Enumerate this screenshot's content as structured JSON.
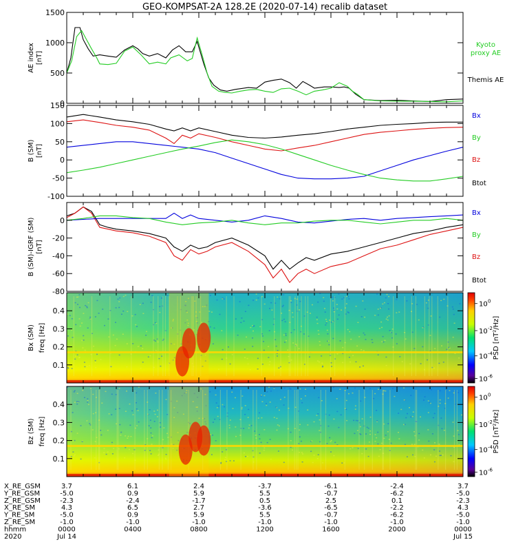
{
  "title": "GEO-KOMPSAT-2A 128.2E (2020-07-14) recalib dataset",
  "colors": {
    "black": "#000000",
    "blue": "#0000dd",
    "green": "#22cc22",
    "red": "#dd1111"
  },
  "chart_data": [
    {
      "id": "ae",
      "type": "line",
      "ylabel": "AE index",
      "yunit": "[nT]",
      "ylim": [
        0,
        1500
      ],
      "yticks": [
        0,
        500,
        1000,
        1500
      ],
      "xlim": [
        0,
        24
      ],
      "legend": [
        {
          "label": "Kyoto proxy AE",
          "color": "green"
        },
        {
          "label": "Themis AE",
          "color": "black"
        }
      ],
      "series": [
        {
          "name": "Themis AE",
          "color": "black",
          "x": [
            0,
            0.25,
            0.5,
            0.8,
            1,
            1.3,
            1.6,
            2,
            2.5,
            3,
            3.5,
            4,
            4.3,
            4.6,
            5,
            5.5,
            6,
            6.4,
            6.8,
            7.2,
            7.6,
            7.9,
            8.3,
            8.6,
            8.9,
            9.3,
            9.7,
            10.2,
            11,
            11.5,
            12,
            12.5,
            13,
            13.5,
            13.9,
            14.3,
            14.7,
            15,
            15.6,
            16,
            16.5,
            16.8,
            17.1,
            17.5,
            18,
            19,
            20,
            21,
            22,
            23,
            24
          ],
          "y": [
            500,
            750,
            1250,
            1250,
            1050,
            900,
            780,
            800,
            780,
            760,
            880,
            950,
            900,
            820,
            780,
            820,
            750,
            880,
            950,
            850,
            850,
            1020,
            650,
            420,
            300,
            220,
            200,
            230,
            260,
            250,
            350,
            380,
            400,
            340,
            250,
            360,
            300,
            250,
            270,
            270,
            260,
            270,
            250,
            150,
            60,
            45,
            50,
            40,
            30,
            60,
            70
          ]
        },
        {
          "name": "Kyoto proxy AE",
          "color": "green",
          "x": [
            0,
            0.3,
            0.6,
            0.9,
            1.2,
            1.5,
            1.8,
            2,
            2.5,
            3,
            3.5,
            4,
            4.5,
            5,
            5.5,
            6,
            6.3,
            6.8,
            7.3,
            7.6,
            7.9,
            8.2,
            8.5,
            8.8,
            9.2,
            9.6,
            10,
            10.5,
            11,
            11.5,
            12,
            12.5,
            13,
            13.5,
            14,
            14.5,
            15,
            15.5,
            16,
            16.5,
            17,
            17.3,
            17.6,
            18,
            19,
            20,
            21,
            22,
            23,
            24
          ],
          "y": [
            500,
            700,
            1100,
            1200,
            1050,
            900,
            760,
            650,
            640,
            660,
            860,
            930,
            800,
            650,
            680,
            650,
            750,
            800,
            700,
            740,
            1080,
            800,
            500,
            280,
            200,
            180,
            170,
            200,
            220,
            230,
            200,
            180,
            240,
            250,
            200,
            140,
            200,
            220,
            250,
            340,
            280,
            200,
            150,
            60,
            40,
            35,
            35,
            30,
            25,
            40
          ]
        }
      ]
    },
    {
      "id": "bsm",
      "type": "line",
      "ylabel": "B (SM)",
      "yunit": "[nT]",
      "ylim": [
        -100,
        150
      ],
      "yticks": [
        -100,
        -50,
        0,
        50,
        100,
        150
      ],
      "xlim": [
        0,
        24
      ],
      "legend": [
        {
          "label": "Bx",
          "color": "blue"
        },
        {
          "label": "By",
          "color": "green"
        },
        {
          "label": "Bz",
          "color": "red"
        },
        {
          "label": "Btot",
          "color": "black"
        }
      ],
      "series": [
        {
          "name": "Btot",
          "color": "black",
          "x": [
            0,
            1,
            2,
            3,
            4,
            5,
            6,
            6.5,
            7,
            7.5,
            8,
            9,
            10,
            11,
            12,
            13,
            14,
            15,
            16,
            17,
            18,
            19,
            20,
            21,
            22,
            23,
            24
          ],
          "y": [
            118,
            125,
            118,
            110,
            105,
            98,
            85,
            80,
            88,
            80,
            88,
            78,
            68,
            62,
            60,
            63,
            68,
            72,
            78,
            85,
            90,
            95,
            98,
            100,
            103,
            104,
            104
          ]
        },
        {
          "name": "Bz",
          "color": "red",
          "x": [
            0,
            1,
            2,
            3,
            4,
            5,
            6,
            6.5,
            7,
            7.5,
            8,
            9,
            10,
            11,
            12,
            13,
            14,
            15,
            16,
            17,
            18,
            19,
            20,
            21,
            22,
            23,
            24
          ],
          "y": [
            105,
            110,
            103,
            95,
            90,
            82,
            60,
            45,
            68,
            60,
            72,
            62,
            50,
            40,
            30,
            25,
            33,
            40,
            50,
            60,
            70,
            76,
            80,
            84,
            87,
            89,
            90
          ]
        },
        {
          "name": "Bx",
          "color": "blue",
          "x": [
            0,
            1,
            2,
            3,
            4,
            5,
            6,
            7,
            8,
            9,
            10,
            11,
            12,
            13,
            14,
            15,
            16,
            17,
            18,
            19,
            20,
            21,
            22,
            23,
            24
          ],
          "y": [
            35,
            40,
            45,
            50,
            50,
            45,
            40,
            35,
            30,
            20,
            5,
            -10,
            -25,
            -40,
            -50,
            -52,
            -52,
            -50,
            -45,
            -30,
            -15,
            0,
            12,
            24,
            35
          ]
        },
        {
          "name": "By",
          "color": "green",
          "x": [
            0,
            1,
            2,
            3,
            4,
            5,
            6,
            7,
            8,
            9,
            10,
            11,
            12,
            13,
            14,
            15,
            16,
            17,
            18,
            19,
            20,
            21,
            22,
            23,
            24
          ],
          "y": [
            -35,
            -28,
            -20,
            -10,
            0,
            10,
            20,
            30,
            38,
            48,
            55,
            50,
            42,
            30,
            15,
            0,
            -15,
            -28,
            -40,
            -50,
            -55,
            -58,
            -58,
            -52,
            -45
          ]
        }
      ]
    },
    {
      "id": "dbsm",
      "type": "line",
      "ylabel": "B (SM)-IGRF (SM)",
      "yunit": "[nT]",
      "ylim": [
        -80,
        20
      ],
      "yticks": [
        -80,
        -60,
        -40,
        -20,
        0
      ],
      "xlim": [
        0,
        24
      ],
      "legend": [
        {
          "label": "Bx",
          "color": "blue"
        },
        {
          "label": "By",
          "color": "green"
        },
        {
          "label": "Bz",
          "color": "red"
        },
        {
          "label": "Btot",
          "color": "black"
        }
      ],
      "series": [
        {
          "name": "Btot",
          "color": "black",
          "x": [
            0,
            0.5,
            1,
            1.5,
            2,
            2.5,
            3,
            4,
            5,
            6,
            6.5,
            7,
            7.5,
            8,
            8.5,
            9,
            10,
            11,
            12,
            12.5,
            13,
            13.5,
            14,
            14.5,
            15,
            16,
            17,
            18,
            19,
            20,
            21,
            22,
            23,
            24
          ],
          "y": [
            5,
            8,
            15,
            10,
            -5,
            -8,
            -10,
            -12,
            -15,
            -20,
            -30,
            -35,
            -28,
            -32,
            -30,
            -25,
            -20,
            -28,
            -40,
            -55,
            -45,
            -55,
            -48,
            -42,
            -45,
            -38,
            -35,
            -30,
            -25,
            -20,
            -15,
            -12,
            -8,
            -5
          ]
        },
        {
          "name": "Bz",
          "color": "red",
          "x": [
            0,
            0.5,
            1,
            1.5,
            2,
            2.5,
            3,
            4,
            5,
            6,
            6.5,
            7,
            7.5,
            8,
            8.5,
            9,
            10,
            11,
            12,
            12.5,
            13,
            13.5,
            14,
            14.5,
            15,
            16,
            17,
            18,
            19,
            20,
            21,
            22,
            23,
            24
          ],
          "y": [
            3,
            8,
            15,
            8,
            -8,
            -10,
            -12,
            -14,
            -18,
            -25,
            -40,
            -45,
            -33,
            -38,
            -35,
            -30,
            -25,
            -35,
            -50,
            -65,
            -55,
            -70,
            -60,
            -55,
            -60,
            -52,
            -48,
            -40,
            -32,
            -28,
            -22,
            -16,
            -12,
            -8
          ]
        },
        {
          "name": "Bx",
          "color": "blue",
          "x": [
            0,
            2,
            4,
            6,
            6.5,
            7,
            7.5,
            8,
            9,
            10,
            11,
            12,
            13,
            14,
            15,
            16,
            17,
            18,
            19,
            20,
            21,
            22,
            23,
            24
          ],
          "y": [
            0,
            2,
            2,
            2,
            8,
            2,
            6,
            2,
            0,
            -2,
            0,
            5,
            2,
            -2,
            -3,
            -1,
            1,
            2,
            0,
            2,
            3,
            4,
            5,
            6
          ]
        },
        {
          "name": "By",
          "color": "green",
          "x": [
            0,
            1,
            2,
            3,
            4,
            5,
            6,
            7,
            8,
            9,
            10,
            11,
            12,
            13,
            14,
            15,
            16,
            17,
            18,
            19,
            20,
            21,
            22,
            23,
            24
          ],
          "y": [
            0,
            2,
            5,
            5,
            3,
            2,
            -2,
            -5,
            -3,
            -2,
            0,
            -3,
            -5,
            -3,
            -3,
            -1,
            0,
            0,
            -2,
            -4,
            -2,
            0,
            0,
            2,
            0
          ]
        }
      ]
    },
    {
      "id": "spec_bx",
      "type": "heatmap",
      "ylabel": "Bx (SM)",
      "ylabel2": "freq [Hz]",
      "ylim": [
        0,
        0.5
      ],
      "yticks": [
        0.1,
        0.2,
        0.3,
        0.4
      ],
      "colorbar_label": "PSD [nT²/Hz]",
      "colorbar_ticks": [
        "10",
        "10",
        "10",
        "10"
      ],
      "colorbar_exps": [
        "0",
        "-2",
        "-4",
        "-6"
      ],
      "events": [
        {
          "t": 7.0,
          "f": 0.12,
          "level": "red"
        },
        {
          "t": 7.4,
          "f": 0.22,
          "level": "red"
        },
        {
          "t": 8.3,
          "f": 0.25,
          "level": "red"
        }
      ]
    },
    {
      "id": "spec_bz",
      "type": "heatmap",
      "ylabel": "Bz (SM)",
      "ylabel2": "freq [Hz]",
      "ylim": [
        0,
        0.5
      ],
      "yticks": [
        0.1,
        0.2,
        0.3,
        0.4
      ],
      "colorbar_label": "PSD [nT²/Hz]",
      "colorbar_ticks": [
        "10",
        "10",
        "10",
        "10"
      ],
      "colorbar_exps": [
        "0",
        "-2",
        "-4",
        "-6"
      ],
      "events": [
        {
          "t": 7.2,
          "f": 0.15,
          "level": "red"
        },
        {
          "t": 7.8,
          "f": 0.22,
          "level": "red"
        },
        {
          "t": 8.3,
          "f": 0.2,
          "level": "red"
        }
      ]
    }
  ],
  "ephemeris": {
    "row_labels": [
      "X_RE_GSM",
      "Y_RE_GSM",
      "Z_RE_GSM",
      "X_RE_SM",
      "Y_RE_SM",
      "Z_RE_SM",
      "hhmm",
      "2020"
    ],
    "columns": [
      [
        "3.7",
        "-5.0",
        "-2.3",
        "4.3",
        "-5.0",
        "-1.0",
        "0000",
        "Jul 14"
      ],
      [
        "6.1",
        "0.9",
        "-2.4",
        "6.5",
        "0.9",
        "-1.0",
        "0400",
        ""
      ],
      [
        "2.4",
        "5.9",
        "-1.7",
        "2.7",
        "5.9",
        "-1.0",
        "0800",
        ""
      ],
      [
        "-3.7",
        "5.5",
        "0.5",
        "-3.6",
        "5.5",
        "-1.0",
        "1200",
        ""
      ],
      [
        "-6.1",
        "-0.7",
        "2.5",
        "-6.5",
        "-0.7",
        "-1.0",
        "1600",
        ""
      ],
      [
        "-2.4",
        "-6.2",
        "0.1",
        "-2.2",
        "-6.2",
        "-1.0",
        "2000",
        ""
      ],
      [
        "3.7",
        "-5.0",
        "-2.3",
        "4.3",
        "-5.0",
        "-1.0",
        "0000",
        "Jul 15"
      ]
    ]
  }
}
